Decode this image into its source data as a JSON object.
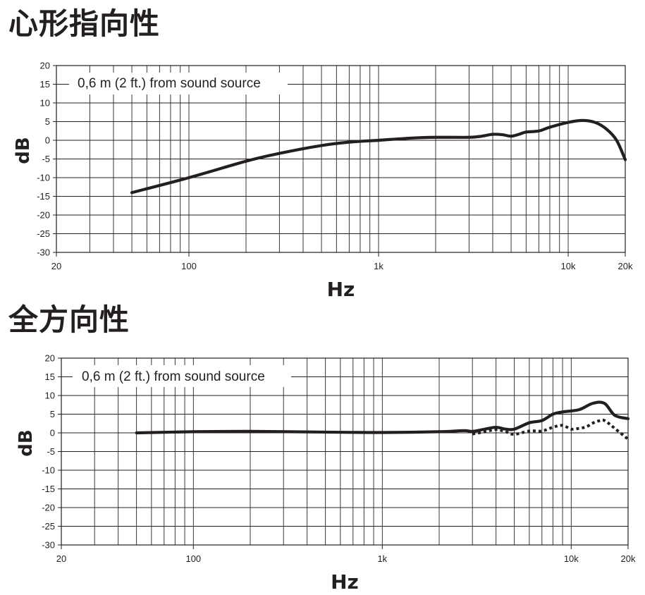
{
  "chart_data": [
    {
      "type": "line",
      "title": "心形指向性",
      "annotation": "0,6 m (2 ft.) from sound source",
      "xlabel": "Hz",
      "ylabel": "dB",
      "x_scale": "log",
      "xlim": [
        20,
        20000
      ],
      "ylim": [
        -30,
        20
      ],
      "x_ticks": [
        20,
        100,
        1000,
        10000,
        20000
      ],
      "x_tick_labels": [
        "20",
        "100",
        "1k",
        "10k",
        "20k"
      ],
      "y_ticks": [
        20,
        15,
        10,
        5,
        0,
        -5,
        -10,
        -15,
        -20,
        -25,
        -30
      ],
      "grid": true,
      "series": [
        {
          "style": "solid",
          "color": "#231f20",
          "x": [
            50,
            100,
            200,
            300,
            500,
            700,
            1000,
            1500,
            2000,
            3000,
            3500,
            4000,
            4500,
            5000,
            5500,
            6000,
            7000,
            8000,
            10000,
            12000,
            14000,
            16000,
            18000,
            20000
          ],
          "y": [
            -14,
            -10,
            -5.6,
            -3.5,
            -1.4,
            -0.5,
            0,
            0.6,
            0.8,
            0.8,
            1.1,
            1.6,
            1.5,
            1.1,
            1.6,
            2.2,
            2.5,
            3.5,
            4.8,
            5.3,
            4.7,
            2.9,
            0,
            -5.2
          ]
        }
      ]
    },
    {
      "type": "line",
      "title": "全方向性",
      "annotation": "0,6 m (2 ft.) from sound source",
      "xlabel": "Hz",
      "ylabel": "dB",
      "x_scale": "log",
      "xlim": [
        20,
        20000
      ],
      "ylim": [
        -30,
        20
      ],
      "x_ticks": [
        20,
        100,
        1000,
        10000,
        20000
      ],
      "x_tick_labels": [
        "20",
        "100",
        "1k",
        "10k",
        "20k"
      ],
      "y_ticks": [
        20,
        15,
        10,
        5,
        0,
        -5,
        -10,
        -15,
        -20,
        -25,
        -30
      ],
      "grid": true,
      "series": [
        {
          "style": "solid",
          "color": "#231f20",
          "x": [
            50,
            100,
            200,
            500,
            1000,
            2000,
            2700,
            3000,
            3500,
            4000,
            4500,
            5000,
            6000,
            7000,
            8000,
            9000,
            11000,
            13000,
            15000,
            17000,
            20000
          ],
          "y": [
            0,
            0.3,
            0.4,
            0.2,
            0.1,
            0.3,
            0.6,
            0.4,
            1.0,
            1.5,
            1.0,
            1.0,
            2.7,
            3.3,
            5.0,
            5.6,
            6.2,
            7.9,
            7.9,
            4.7,
            3.8
          ]
        },
        {
          "style": "dotted",
          "color": "#231f20",
          "x": [
            3000,
            3500,
            4000,
            4500,
            5000,
            6000,
            7000,
            8000,
            9000,
            10000,
            11000,
            12000,
            13000,
            14000,
            15000,
            17000,
            20000
          ],
          "y": [
            -0.3,
            0.3,
            0.9,
            0.3,
            -0.4,
            0.5,
            0.5,
            1.5,
            2.0,
            1.0,
            1.2,
            1.6,
            2.6,
            3.2,
            3.3,
            1.2,
            -1.7
          ]
        }
      ]
    }
  ]
}
